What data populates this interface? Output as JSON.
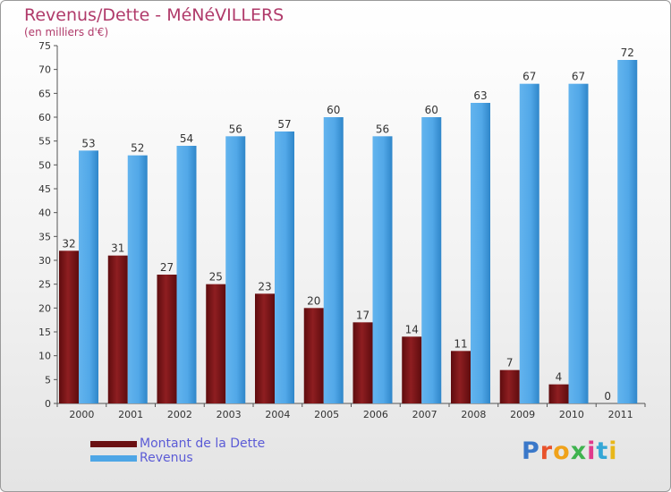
{
  "title": "Revenus/Dette - MéNéVILLERS",
  "subtitle": "(en milliers d'€)",
  "legend": {
    "debt_label": "Montant de la Dette",
    "revenue_label": "Revenus"
  },
  "logo": {
    "text": "Proxiti",
    "letter_colors": [
      "#3a78c9",
      "#e8522b",
      "#f0a21a",
      "#3fb34f",
      "#e03a8c",
      "#35a7d6",
      "#e8b71a"
    ]
  },
  "colors": {
    "debt": "#7a1416",
    "revenue": "#4ea6e6",
    "title": "#b03a6a",
    "legend_text": "#5b5bd6"
  },
  "chart_data": {
    "type": "bar",
    "categories": [
      "2000",
      "2001",
      "2002",
      "2003",
      "2004",
      "2005",
      "2006",
      "2007",
      "2008",
      "2009",
      "2010",
      "2011"
    ],
    "series": [
      {
        "name": "Montant de la Dette",
        "values": [
          32,
          31,
          27,
          25,
          23,
          20,
          17,
          14,
          11,
          7,
          4,
          0
        ]
      },
      {
        "name": "Revenus",
        "values": [
          53,
          52,
          54,
          56,
          57,
          60,
          56,
          60,
          63,
          67,
          67,
          72
        ]
      }
    ],
    "yticks": [
      0,
      5,
      10,
      15,
      20,
      25,
      30,
      35,
      40,
      45,
      50,
      55,
      60,
      65,
      70,
      75
    ],
    "ylim": [
      0,
      75
    ],
    "grid": false,
    "legend_position": "bottom-left"
  }
}
